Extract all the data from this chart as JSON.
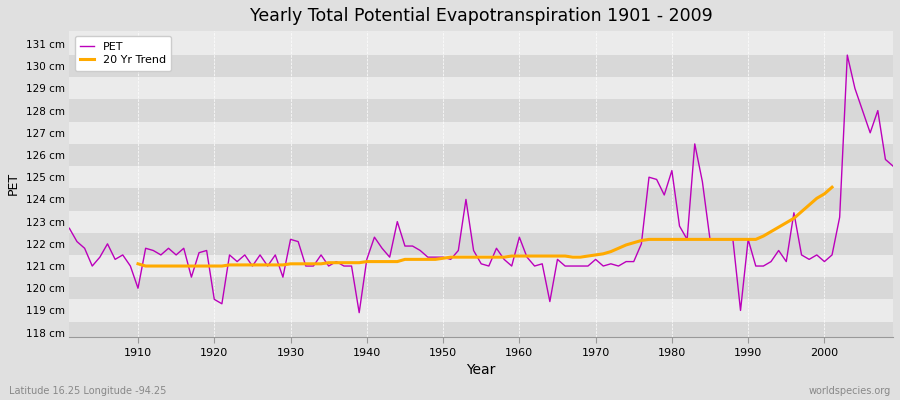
{
  "title": "Yearly Total Potential Evapotranspiration 1901 - 2009",
  "xlabel": "Year",
  "ylabel": "PET",
  "subtitle_left": "Latitude 16.25 Longitude -94.25",
  "subtitle_right": "worldspecies.org",
  "ylim": [
    117.8,
    131.6
  ],
  "ytick_labels": [
    "118 cm",
    "119 cm",
    "120 cm",
    "121 cm",
    "122 cm",
    "123 cm",
    "124 cm",
    "125 cm",
    "126 cm",
    "127 cm",
    "128 cm",
    "129 cm",
    "130 cm",
    "131 cm"
  ],
  "ytick_values": [
    118,
    119,
    120,
    121,
    122,
    123,
    124,
    125,
    126,
    127,
    128,
    129,
    130,
    131
  ],
  "pet_color": "#bb00bb",
  "trend_color": "#ffaa00",
  "bg_color": "#e0e0e0",
  "plot_bg_light": "#ebebeb",
  "plot_bg_dark": "#d8d8d8",
  "legend_pet": "PET",
  "legend_trend": "20 Yr Trend",
  "years": [
    1901,
    1902,
    1903,
    1904,
    1905,
    1906,
    1907,
    1908,
    1909,
    1910,
    1911,
    1912,
    1913,
    1914,
    1915,
    1916,
    1917,
    1918,
    1919,
    1920,
    1921,
    1922,
    1923,
    1924,
    1925,
    1926,
    1927,
    1928,
    1929,
    1930,
    1931,
    1932,
    1933,
    1934,
    1935,
    1936,
    1937,
    1938,
    1939,
    1940,
    1941,
    1942,
    1943,
    1944,
    1945,
    1946,
    1947,
    1948,
    1949,
    1950,
    1951,
    1952,
    1953,
    1954,
    1955,
    1956,
    1957,
    1958,
    1959,
    1960,
    1961,
    1962,
    1963,
    1964,
    1965,
    1966,
    1967,
    1968,
    1969,
    1970,
    1971,
    1972,
    1973,
    1974,
    1975,
    1976,
    1977,
    1978,
    1979,
    1980,
    1981,
    1982,
    1983,
    1984,
    1985,
    1986,
    1987,
    1988,
    1989,
    1990,
    1991,
    1992,
    1993,
    1994,
    1995,
    1996,
    1997,
    1998,
    1999,
    2000,
    2001,
    2002,
    2003,
    2004,
    2005,
    2006,
    2007,
    2008,
    2009
  ],
  "pet_values": [
    122.7,
    122.1,
    121.8,
    121.0,
    121.4,
    122.0,
    121.3,
    121.5,
    121.0,
    120.0,
    121.8,
    121.7,
    121.5,
    121.8,
    121.5,
    121.8,
    120.5,
    121.6,
    121.7,
    119.5,
    119.3,
    121.5,
    121.2,
    121.5,
    121.0,
    121.5,
    121.0,
    121.5,
    120.5,
    122.2,
    122.1,
    121.0,
    121.0,
    121.5,
    121.0,
    121.2,
    121.0,
    121.0,
    118.9,
    121.3,
    122.3,
    121.8,
    121.4,
    123.0,
    121.9,
    121.9,
    121.7,
    121.4,
    121.4,
    121.4,
    121.3,
    121.7,
    124.0,
    121.7,
    121.1,
    121.0,
    121.8,
    121.3,
    121.0,
    122.3,
    121.4,
    121.0,
    121.1,
    119.4,
    121.3,
    121.0,
    121.0,
    121.0,
    121.0,
    121.3,
    121.0,
    121.1,
    121.0,
    121.2,
    121.2,
    122.0,
    125.0,
    124.9,
    124.2,
    125.3,
    122.8,
    122.2,
    126.5,
    124.8,
    122.2,
    122.2,
    122.2,
    122.2,
    119.0,
    122.2,
    121.0,
    121.0,
    121.2,
    121.7,
    121.2,
    123.4,
    121.5,
    121.3,
    121.5,
    121.2,
    121.5,
    123.2,
    130.5,
    129.0,
    128.0,
    127.0,
    128.0,
    125.8,
    125.5
  ],
  "trend_values": [
    null,
    null,
    null,
    null,
    null,
    null,
    null,
    null,
    null,
    121.1,
    121.0,
    121.0,
    121.0,
    121.0,
    121.0,
    121.0,
    121.0,
    121.0,
    121.0,
    121.0,
    121.0,
    121.05,
    121.05,
    121.05,
    121.05,
    121.05,
    121.05,
    121.05,
    121.05,
    121.1,
    121.1,
    121.1,
    121.1,
    121.1,
    121.15,
    121.15,
    121.15,
    121.15,
    121.15,
    121.2,
    121.2,
    121.2,
    121.2,
    121.2,
    121.3,
    121.3,
    121.3,
    121.3,
    121.3,
    121.35,
    121.4,
    121.4,
    121.4,
    121.4,
    121.4,
    121.4,
    121.4,
    121.4,
    121.45,
    121.45,
    121.45,
    121.45,
    121.45,
    121.45,
    121.45,
    121.45,
    121.4,
    121.4,
    121.45,
    121.5,
    121.55,
    121.65,
    121.8,
    121.95,
    122.05,
    122.15,
    122.2,
    122.2,
    122.2,
    122.2,
    122.2,
    122.2,
    122.2,
    122.2,
    122.2,
    122.2,
    122.2,
    122.2,
    122.2,
    122.2,
    122.2,
    122.35,
    122.55,
    122.75,
    122.95,
    123.15,
    123.45,
    123.75,
    124.05,
    124.25,
    124.55,
    null,
    null,
    null,
    null,
    null,
    null,
    null
  ]
}
